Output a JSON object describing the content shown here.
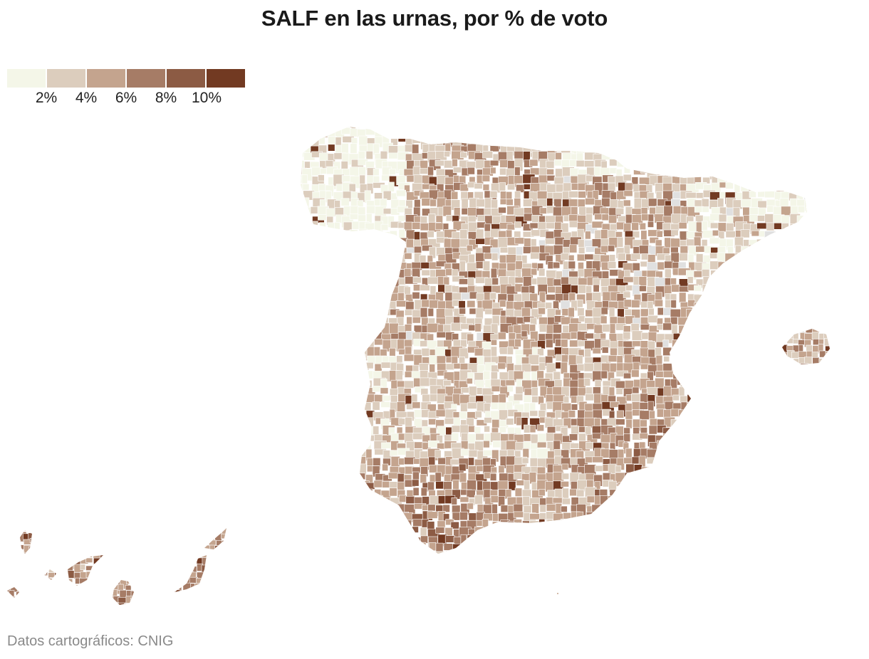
{
  "title": "SALF en las urnas, por % de voto",
  "legend": {
    "colors": [
      "#f4f6e8",
      "#dccdbd",
      "#c4a48e",
      "#a67c66",
      "#8c5b44",
      "#723a22"
    ],
    "labels": [
      "2%",
      "4%",
      "6%",
      "8%",
      "10%"
    ]
  },
  "source": "Datos cartográficos: CNIG",
  "map": {
    "background_outline": "#ffffff",
    "missing_color": "#e0e0e0"
  }
}
